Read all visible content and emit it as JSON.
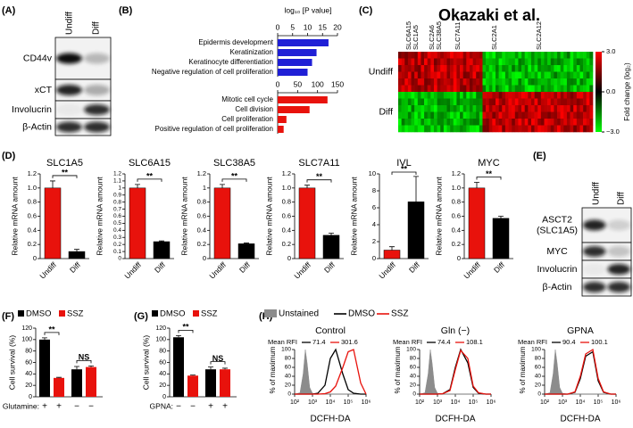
{
  "panel_labels": [
    "(A)",
    "(B)",
    "(C)",
    "(D)",
    "(E)",
    "(F)",
    "(G)",
    "(H)"
  ],
  "blots": [
    {
      "columns": [
        "Undiff",
        "Diff"
      ],
      "rows": [
        [
          "CD44v"
        ],
        [
          "xCT"
        ],
        [
          "Involucrin"
        ],
        [
          "β-Actin"
        ]
      ]
    },
    {
      "columns": [
        "Undiff",
        "Diff"
      ],
      "rows": [
        [
          "ASCT2",
          "(SLC1A5)"
        ],
        [
          "MYC"
        ],
        [
          "Involucrin"
        ],
        [
          "β-Actin"
        ]
      ]
    }
  ],
  "heatmap": {
    "title": "Okazaki et al.",
    "genes": [
      {
        "name": "SLC6A15",
        "color": "#e0201b"
      },
      {
        "name": "SLC1A5",
        "color": "#e0201b"
      },
      {
        "name": "SLC2A6",
        "color": "#2b3fd6"
      },
      {
        "name": "SLC38A5",
        "color": "#e0201b"
      },
      {
        "name": "SLC7A11",
        "color": "#000000"
      },
      {
        "name": "SLC2A1",
        "color": "#2b3fd6"
      },
      {
        "name": "SLC2A12",
        "color": "#2b3fd6"
      }
    ],
    "rows": [
      "Undiff",
      "Diff"
    ],
    "colorbar": {
      "label": "Fold change (log₂)",
      "lim": [
        -3,
        3
      ],
      "ticks": [
        {
          "value": 3,
          "label": "3.0"
        },
        {
          "value": 0,
          "label": "0.0"
        },
        {
          "value": -3,
          "label": "−3.0"
        }
      ]
    }
  },
  "chart_data": [
    {
      "type": "hbar",
      "xlabel": "log₁₀ [P value]",
      "groups": [
        {
          "categories": [
            "Epidermis development",
            "Keratinization",
            "Keratinocyte differentiation",
            "Negative regulation of cell proliferation"
          ],
          "values": [
            17,
            13,
            11.5,
            10
          ],
          "color": "#1f1fd6",
          "xlim": [
            0,
            20
          ],
          "xticks": [
            0,
            5,
            10,
            15,
            20
          ]
        },
        {
          "categories": [
            "Mitotic cell cycle",
            "Cell division",
            "Cell proliferation",
            "Positive regulation of cell proliferation"
          ],
          "values": [
            125,
            80,
            22,
            15
          ],
          "color": "#e8120c",
          "xlim": [
            0,
            150
          ],
          "xticks": [
            0,
            50,
            100,
            150
          ]
        }
      ]
    },
    {
      "type": "bar",
      "title": "SLC1A5",
      "ylabel": "Relative mRNA amount",
      "categories": [
        "Undiff",
        "Diff"
      ],
      "values": [
        1.0,
        0.1
      ],
      "errors": [
        0.1,
        0.03
      ],
      "colors": [
        "#e8120c",
        "#000000"
      ],
      "ylim": [
        0,
        1.2
      ],
      "yticks": [
        0,
        0.2,
        0.4,
        0.6,
        0.8,
        {
          "value": 1,
          "label": "1.0"
        },
        1.2
      ],
      "annotation": "**"
    },
    {
      "type": "bar",
      "title": "SLC6A15",
      "ylabel": "Relative mRNA amount",
      "categories": [
        "Undiff",
        "Diff"
      ],
      "values": [
        1.0,
        0.24
      ],
      "errors": [
        0.05,
        0.01
      ],
      "colors": [
        "#e8120c",
        "#000000"
      ],
      "ylim": [
        0,
        1.2
      ],
      "yticks": [
        0,
        0.1,
        0.2,
        0.3,
        0.4,
        0.5,
        0.6,
        0.7,
        0.8,
        0.9,
        1,
        1.1,
        1.2
      ],
      "annotation": "**"
    },
    {
      "type": "bar",
      "title": "SLC38A5",
      "ylabel": "Relative mRNA amount",
      "categories": [
        "Undiff",
        "Diff"
      ],
      "values": [
        1.0,
        0.21
      ],
      "errors": [
        0.05,
        0.01
      ],
      "colors": [
        "#e8120c",
        "#000000"
      ],
      "ylim": [
        0,
        1.2
      ],
      "yticks": [
        0,
        0.2,
        0.4,
        0.6,
        0.8,
        1,
        1.2
      ],
      "annotation": "**"
    },
    {
      "type": "bar",
      "title": "SLC7A11",
      "ylabel": "Relative mRNA amount",
      "categories": [
        "Undiff",
        "Diff"
      ],
      "values": [
        1.0,
        0.33
      ],
      "errors": [
        0.04,
        0.03
      ],
      "colors": [
        "#e8120c",
        "#000000"
      ],
      "ylim": [
        0,
        1.2
      ],
      "yticks": [
        0,
        0.2,
        0.4,
        0.6,
        0.8,
        {
          "value": 1,
          "label": "1.0"
        },
        1.2
      ],
      "annotation": "**"
    },
    {
      "type": "bar",
      "title": "IVL",
      "ylabel": "Relative mRNA amount",
      "categories": [
        "Undiff",
        "Diff"
      ],
      "values": [
        1.0,
        6.7
      ],
      "errors": [
        0.4,
        3
      ],
      "colors": [
        "#e8120c",
        "#000000"
      ],
      "ylim": [
        0,
        10
      ],
      "yticks": [
        0,
        2,
        4,
        6,
        8,
        10
      ],
      "annotation": "**"
    },
    {
      "type": "bar",
      "title": "MYC",
      "ylabel": "Relative mRNA amount",
      "categories": [
        "Undiff",
        "Diff"
      ],
      "values": [
        1.0,
        0.57
      ],
      "errors": [
        0.08,
        0.03
      ],
      "colors": [
        "#e8120c",
        "#000000"
      ],
      "ylim": [
        0,
        1.2
      ],
      "yticks": [
        0,
        0.2,
        0.4,
        0.6,
        0.8,
        {
          "value": 1,
          "label": "1.0"
        },
        1.2
      ],
      "annotation": "**"
    },
    {
      "type": "grouped_bar",
      "ylabel": "Cell survival (%)",
      "x_label": "Glutamine:",
      "bar_labels": [
        "+",
        "+",
        "−",
        "−"
      ],
      "series": [
        {
          "name": "DMSO",
          "color": "#000000",
          "values": [
            100,
            48
          ],
          "errors": [
            3,
            5
          ]
        },
        {
          "name": "SSZ",
          "color": "#e8120c",
          "values": [
            33,
            52
          ],
          "errors": [
            1,
            2
          ]
        }
      ],
      "ylim": [
        0,
        120
      ],
      "yticks": [
        0,
        20,
        40,
        60,
        80,
        100,
        120
      ],
      "annotations": [
        "**",
        "NS"
      ]
    },
    {
      "type": "grouped_bar",
      "ylabel": "Cell survival (%)",
      "x_label": "GPNA:",
      "bar_labels": [
        "−",
        "−",
        "+",
        "+"
      ],
      "series": [
        {
          "name": "DMSO",
          "color": "#000000",
          "values": [
            104,
            48
          ],
          "errors": [
            3,
            4
          ]
        },
        {
          "name": "SSZ",
          "color": "#e8120c",
          "values": [
            37,
            48
          ],
          "errors": [
            1,
            2
          ]
        }
      ],
      "ylim": [
        0,
        120
      ],
      "yticks": [
        0,
        20,
        40,
        60,
        80,
        100,
        120
      ],
      "annotations": [
        "**",
        "NS"
      ]
    },
    {
      "type": "histogram_line",
      "title": "Control",
      "legend": true,
      "xlog": true,
      "xlabel": "DCFH-DA",
      "ylabel": "% of maximum",
      "rfi_label": "Mean RFI",
      "x": [
        100,
        200,
        300,
        400,
        500,
        700,
        1000,
        2000,
        5000,
        10000,
        20000,
        50000,
        100000,
        200000,
        500000,
        1000000
      ],
      "xlim": [
        100,
        1000000
      ],
      "xticks": [
        {
          "value": 100,
          "label": "10²"
        },
        {
          "value": 1000,
          "label": "10³"
        },
        {
          "value": 10000,
          "label": "10⁴"
        },
        {
          "value": 100000,
          "label": "10⁵"
        },
        {
          "value": 1000000,
          "label": "10⁶"
        }
      ],
      "ylim": [
        0,
        100
      ],
      "yticks": [
        0,
        20,
        40,
        60,
        80,
        100
      ],
      "series": [
        {
          "name": "Unstained",
          "color": "#8c8c8c",
          "fill": true,
          "values": [
            0,
            3,
            45,
            100,
            70,
            15,
            2,
            0,
            0,
            0,
            0,
            0,
            0,
            0,
            0,
            0
          ]
        },
        {
          "name": "DMSO",
          "color": "#000000",
          "mean_rfi": 71.4,
          "values": [
            0,
            0,
            0,
            0,
            0,
            0,
            0,
            2,
            20,
            80,
            100,
            45,
            10,
            2,
            0,
            0
          ]
        },
        {
          "name": "SSZ",
          "color": "#e8120c",
          "mean_rfi": 301.6,
          "values": [
            0,
            0,
            0,
            0,
            0,
            0,
            0,
            0,
            1,
            5,
            18,
            60,
            95,
            100,
            25,
            0
          ]
        }
      ]
    },
    {
      "type": "histogram_line",
      "title": "Gln (−)",
      "legend": false,
      "xlog": true,
      "xlabel": "DCFH-DA",
      "ylabel": "% of maximum",
      "rfi_label": "Mean RFI",
      "x": [
        100,
        200,
        300,
        400,
        500,
        700,
        1000,
        2000,
        5000,
        10000,
        20000,
        50000,
        100000,
        200000,
        500000,
        1000000
      ],
      "xlim": [
        100,
        1000000
      ],
      "xticks": [
        {
          "value": 100,
          "label": "10²"
        },
        {
          "value": 1000,
          "label": "10³"
        },
        {
          "value": 10000,
          "label": "10⁴"
        },
        {
          "value": 100000,
          "label": "10⁵"
        },
        {
          "value": 1000000,
          "label": "10⁶"
        }
      ],
      "ylim": [
        0,
        100
      ],
      "yticks": [
        0,
        20,
        40,
        60,
        80,
        100
      ],
      "series": [
        {
          "name": "Unstained",
          "color": "#8c8c8c",
          "fill": true,
          "values": [
            0,
            3,
            45,
            100,
            70,
            15,
            2,
            0,
            0,
            0,
            0,
            0,
            0,
            0,
            0,
            0
          ]
        },
        {
          "name": "DMSO",
          "color": "#000000",
          "mean_rfi": 74.4,
          "values": [
            0,
            0,
            0,
            0,
            0,
            0,
            0,
            1,
            10,
            60,
            100,
            70,
            15,
            2,
            0,
            0
          ]
        },
        {
          "name": "SSZ",
          "color": "#e8120c",
          "mean_rfi": 108.1,
          "values": [
            0,
            0,
            0,
            0,
            0,
            0,
            0,
            1,
            8,
            55,
            98,
            80,
            18,
            3,
            0,
            0
          ]
        }
      ]
    },
    {
      "type": "histogram_line",
      "title": "GPNA",
      "legend": false,
      "xlog": true,
      "xlabel": "DCFH-DA",
      "ylabel": "% of maximum",
      "rfi_label": "Mean RFI",
      "x": [
        100,
        200,
        300,
        400,
        500,
        700,
        1000,
        2000,
        5000,
        10000,
        20000,
        50000,
        100000,
        200000,
        500000,
        1000000
      ],
      "xlim": [
        100,
        1000000
      ],
      "xticks": [
        {
          "value": 100,
          "label": "10²"
        },
        {
          "value": 1000,
          "label": "10³"
        },
        {
          "value": 10000,
          "label": "10⁴"
        },
        {
          "value": 100000,
          "label": "10⁵"
        },
        {
          "value": 1000000,
          "label": "10⁶"
        }
      ],
      "ylim": [
        0,
        100
      ],
      "yticks": [
        0,
        20,
        40,
        60,
        80,
        100
      ],
      "series": [
        {
          "name": "Unstained",
          "color": "#8c8c8c",
          "fill": true,
          "values": [
            0,
            3,
            45,
            100,
            70,
            15,
            2,
            0,
            0,
            0,
            0,
            0,
            0,
            0,
            0,
            0
          ]
        },
        {
          "name": "DMSO",
          "color": "#000000",
          "mean_rfi": 90.4,
          "values": [
            0,
            0,
            0,
            0,
            0,
            0,
            0,
            0,
            4,
            35,
            85,
            95,
            30,
            4,
            0,
            0
          ]
        },
        {
          "name": "SSZ",
          "color": "#e8120c",
          "mean_rfi": 100.1,
          "values": [
            0,
            0,
            0,
            0,
            0,
            0,
            0,
            0,
            5,
            40,
            90,
            100,
            35,
            5,
            0,
            0
          ]
        }
      ]
    }
  ]
}
